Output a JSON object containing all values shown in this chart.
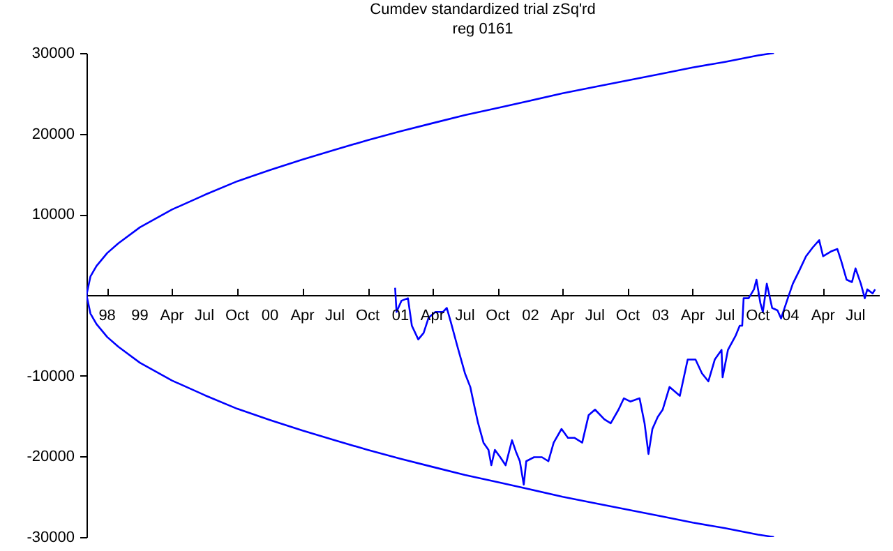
{
  "chart_data": {
    "type": "line",
    "title": "Cumdev   standardized   trial zSq'rd",
    "subtitle": "reg 0161",
    "xlim": [
      "1998-08-04",
      "2004-09-05"
    ],
    "ylim": [
      -30000,
      30000
    ],
    "xticks": [
      {
        "value": "1998-10-01",
        "label": "98"
      },
      {
        "value": "1999-01-01",
        "label": "99"
      },
      {
        "value": "1999-04-01",
        "label": "Apr"
      },
      {
        "value": "1999-07-01",
        "label": "Jul"
      },
      {
        "value": "1999-10-01",
        "label": "Oct"
      },
      {
        "value": "2000-01-01",
        "label": "00"
      },
      {
        "value": "2000-04-01",
        "label": "Apr"
      },
      {
        "value": "2000-07-01",
        "label": "Jul"
      },
      {
        "value": "2000-10-01",
        "label": "Oct"
      },
      {
        "value": "2001-01-01",
        "label": "01"
      },
      {
        "value": "2001-04-01",
        "label": "Apr"
      },
      {
        "value": "2001-07-01",
        "label": "Jul"
      },
      {
        "value": "2001-10-01",
        "label": "Oct"
      },
      {
        "value": "2002-01-01",
        "label": "02"
      },
      {
        "value": "2002-04-01",
        "label": "Apr"
      },
      {
        "value": "2002-07-01",
        "label": "Jul"
      },
      {
        "value": "2002-10-01",
        "label": "Oct"
      },
      {
        "value": "2003-01-01",
        "label": "03"
      },
      {
        "value": "2003-04-01",
        "label": "Apr"
      },
      {
        "value": "2003-07-01",
        "label": "Jul"
      },
      {
        "value": "2003-10-01",
        "label": "Oct"
      },
      {
        "value": "2004-01-01",
        "label": "04"
      },
      {
        "value": "2004-04-01",
        "label": "Apr"
      },
      {
        "value": "2004-07-01",
        "label": "Jul"
      }
    ],
    "yticks": [
      -30000,
      -20000,
      -10000,
      10000,
      20000,
      30000
    ],
    "grid": false,
    "marker": "none",
    "series": [
      {
        "color": "#0000ff",
        "x": [
          "2003-11-15",
          "2003-10-01",
          "2003-07-01",
          "2003-04-01",
          "2003-01-01",
          "2002-10-01",
          "2002-07-01",
          "2002-04-01",
          "2002-01-01",
          "2001-10-01",
          "2001-07-01",
          "2001-04-01",
          "2001-01-01",
          "2000-10-01",
          "2000-07-01",
          "2000-04-01",
          "2000-01-01",
          "1999-10-01",
          "1999-07-01",
          "1999-04-01",
          "1999-01-01",
          "1998-11-01",
          "1998-10-01",
          "1998-09-01",
          "1998-08-15",
          "1998-08-04",
          "1998-08-15",
          "1998-09-01",
          "1998-10-01",
          "1998-11-01",
          "1999-01-01",
          "1999-04-01",
          "1999-07-01",
          "1999-10-01",
          "2000-01-01",
          "2000-04-01",
          "2000-07-01",
          "2000-10-01",
          "2001-01-01",
          "2001-04-01",
          "2001-07-01",
          "2001-10-01",
          "2002-01-01",
          "2002-04-01",
          "2002-07-01",
          "2002-10-01",
          "2003-01-01",
          "2003-04-01",
          "2003-07-01",
          "2003-10-01",
          "2003-11-15"
        ],
        "values": [
          30000,
          29700,
          28900,
          28200,
          27400,
          26600,
          25800,
          25000,
          24100,
          23200,
          22300,
          21300,
          20300,
          19200,
          18000,
          16800,
          15500,
          14100,
          12400,
          10600,
          8400,
          6400,
          5200,
          3600,
          2300,
          0,
          -2300,
          -3600,
          -5200,
          -6400,
          -8400,
          -10600,
          -12400,
          -14100,
          -15500,
          -16800,
          -18000,
          -19200,
          -20300,
          -21300,
          -22300,
          -23200,
          -24100,
          -25000,
          -25800,
          -26600,
          -27400,
          -28200,
          -28900,
          -29700,
          -30000
        ]
      },
      {
        "color": "#0000ff",
        "x": [
          "2000-12-17",
          "2000-12-21",
          "2001-01-04",
          "2001-01-22",
          "2001-02-02",
          "2001-02-20",
          "2001-03-07",
          "2001-03-21",
          "2001-04-09",
          "2001-04-30",
          "2001-05-11",
          "2001-05-22",
          "2001-06-10",
          "2001-07-01",
          "2001-07-16",
          "2001-07-27",
          "2001-08-07",
          "2001-08-22",
          "2001-09-05",
          "2001-09-13",
          "2001-09-23",
          "2001-10-08",
          "2001-10-23",
          "2001-11-10",
          "2001-11-21",
          "2001-12-02",
          "2001-12-13",
          "2001-12-20",
          "2002-01-11",
          "2002-02-02",
          "2002-02-20",
          "2002-03-07",
          "2002-03-29",
          "2002-04-16",
          "2002-05-04",
          "2002-05-26",
          "2002-06-13",
          "2002-07-01",
          "2002-07-27",
          "2002-08-14",
          "2002-09-05",
          "2002-09-20",
          "2002-10-08",
          "2002-11-03",
          "2002-11-17",
          "2002-11-28",
          "2002-12-09",
          "2002-12-24",
          "2003-01-07",
          "2003-01-26",
          "2003-02-24",
          "2003-03-18",
          "2003-04-09",
          "2003-04-27",
          "2003-05-15",
          "2003-06-02",
          "2003-06-21",
          "2003-06-24",
          "2003-07-09",
          "2003-07-31",
          "2003-08-11",
          "2003-08-18",
          "2003-08-22",
          "2003-09-05",
          "2003-09-20",
          "2003-09-27",
          "2003-10-08",
          "2003-10-15",
          "2003-10-26",
          "2003-11-10",
          "2003-11-25",
          "2003-12-05",
          "2003-12-24",
          "2004-01-07",
          "2004-01-26",
          "2004-02-13",
          "2004-03-03",
          "2004-03-21",
          "2004-04-01",
          "2004-04-23",
          "2004-05-11",
          "2004-05-22",
          "2004-06-06",
          "2004-06-21",
          "2004-07-01",
          "2004-07-16",
          "2004-07-27",
          "2004-08-03",
          "2004-08-18",
          "2004-08-25"
        ],
        "values": [
          900,
          -2100,
          -700,
          -400,
          -3800,
          -5500,
          -4700,
          -2800,
          -2100,
          -2100,
          -1600,
          -3300,
          -6400,
          -9700,
          -11400,
          -13700,
          -15900,
          -18300,
          -19200,
          -21100,
          -19200,
          -20100,
          -21100,
          -18000,
          -19400,
          -20600,
          -23500,
          -20600,
          -20100,
          -20100,
          -20600,
          -18300,
          -16600,
          -17700,
          -17700,
          -18300,
          -14900,
          -14200,
          -15400,
          -15900,
          -14200,
          -12800,
          -13200,
          -12800,
          -15900,
          -19700,
          -16600,
          -15100,
          -14200,
          -11400,
          -12500,
          -8000,
          -8000,
          -9700,
          -10700,
          -8000,
          -6800,
          -10200,
          -6800,
          -5000,
          -3800,
          -3800,
          -400,
          -400,
          700,
          1900,
          -1000,
          -2100,
          1400,
          -1600,
          -1900,
          -2900,
          -400,
          1400,
          3100,
          4800,
          5900,
          6800,
          4800,
          5400,
          5700,
          4200,
          1900,
          1600,
          3300,
          1400,
          -400,
          700,
          200,
          700
        ]
      }
    ]
  }
}
